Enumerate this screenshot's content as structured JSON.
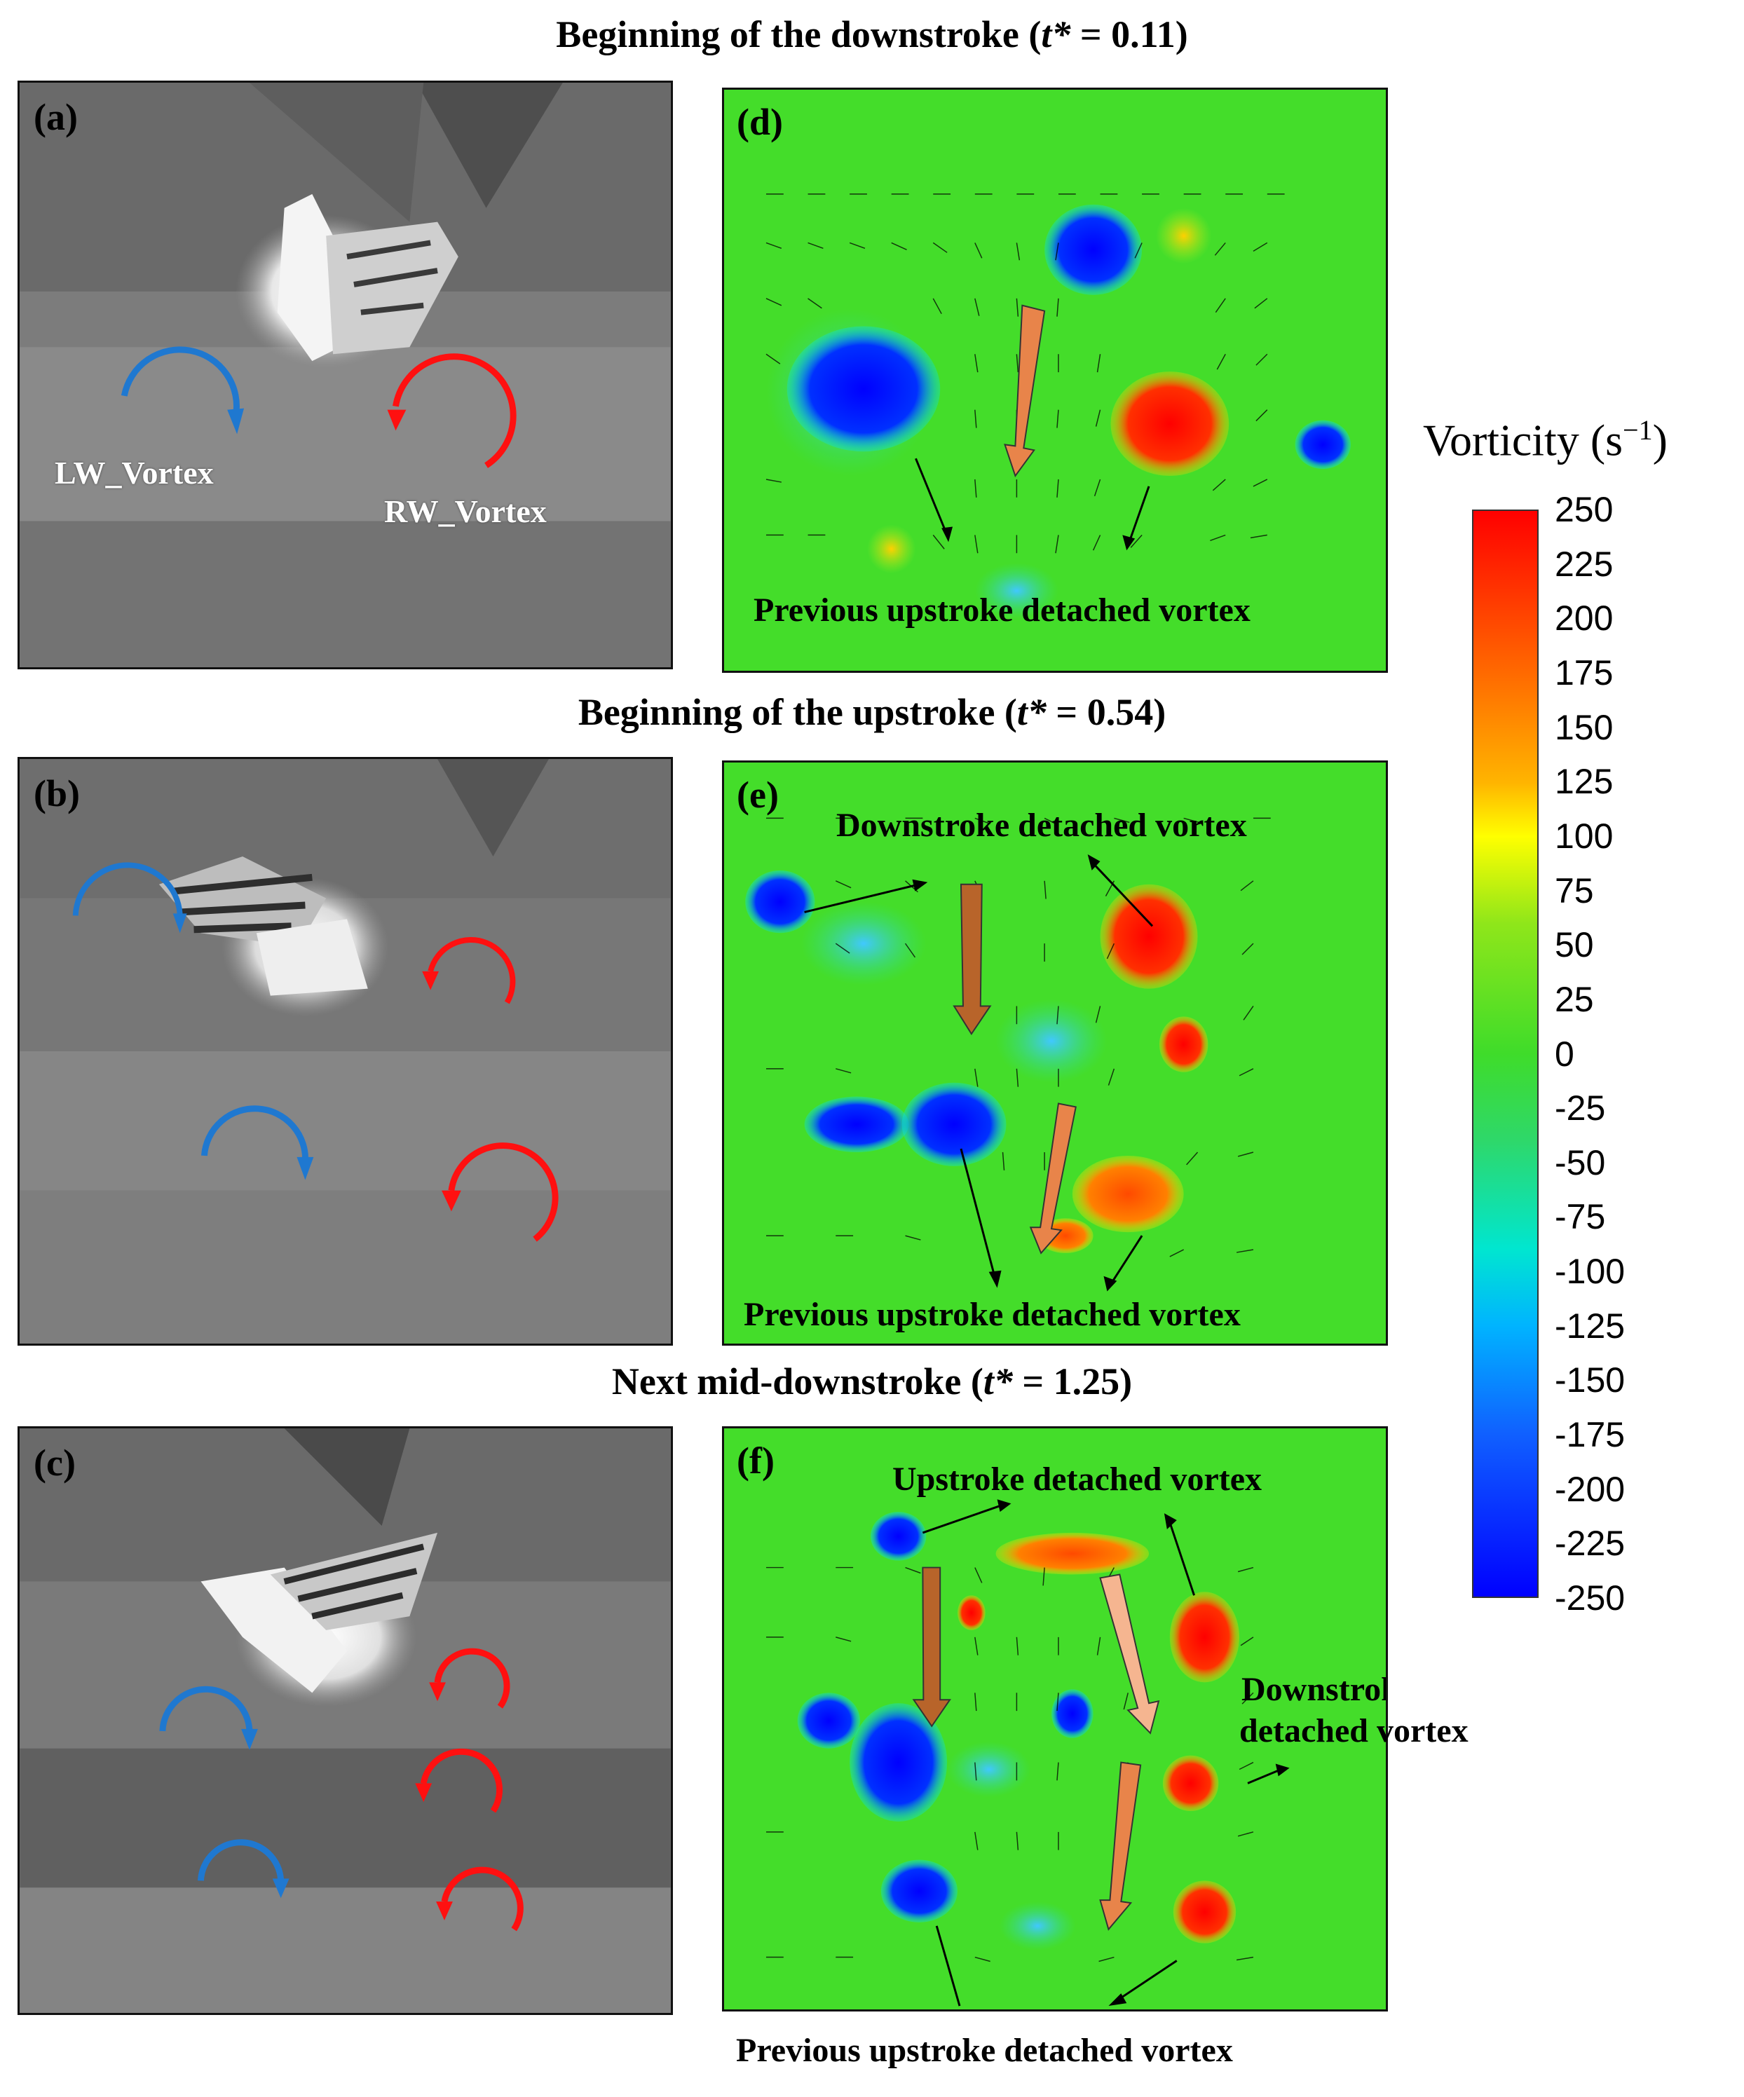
{
  "headings": {
    "row1_prefix": "Beginning of the downstroke (",
    "row1_var": "t*",
    "row1_suffix": " = 0.11)",
    "row2_prefix": "Beginning of the upstroke (",
    "row2_var": "t*",
    "row2_suffix": " = 0.54)",
    "row3_prefix": "Next mid-downstroke (",
    "row3_var": "t*",
    "row3_suffix": " = 1.25)"
  },
  "panels": {
    "a": {
      "label": "(a)",
      "vortex_left": "LW_Vortex",
      "vortex_right": "RW_Vortex"
    },
    "b": {
      "label": "(b)"
    },
    "c": {
      "label": "(c)"
    },
    "d": {
      "label": "(d)",
      "annot1": "Previous upstroke detached vortex"
    },
    "e": {
      "label": "(e)",
      "annot1": "Downstroke detached vortex",
      "annot2": "Previous upstroke detached vortex"
    },
    "f": {
      "label": "(f)",
      "annot1": "Upstroke detached vortex",
      "annot2_line1": "Downstroke",
      "annot2_line2": "detached vortex",
      "annot3": "Previous upstroke detached vortex"
    }
  },
  "colorbar": {
    "title": "Vorticity (s",
    "title_sup": "−1",
    "title_close": ")",
    "ticks": [
      "250",
      "225",
      "200",
      "175",
      "150",
      "125",
      "100",
      "75",
      "50",
      "25",
      "0",
      "-25",
      "-50",
      "-75",
      "-100",
      "-125",
      "-150",
      "-175",
      "-200",
      "-225",
      "-250"
    ],
    "colors": {
      "max": "#ff0000",
      "mid": "#3fdc2a",
      "min": "#0000ff"
    }
  },
  "colors": {
    "cw_arrow": "#ff1010",
    "ccw_arrow": "#1f78d0",
    "flow_bg": "#44dd2a"
  }
}
